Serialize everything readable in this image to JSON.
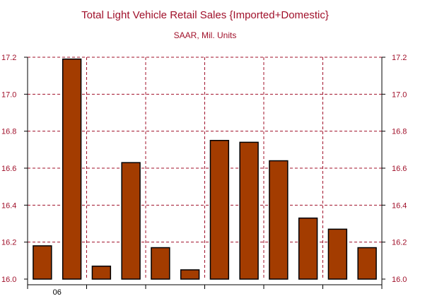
{
  "chart_data": {
    "type": "bar",
    "title": "Total Light Vehicle Retail Sales {Imported+Domestic}",
    "subtitle": "SAAR, Mil. Units",
    "ylim": [
      16.0,
      17.2
    ],
    "yticks": [
      16.0,
      16.2,
      16.4,
      16.6,
      16.8,
      17.0,
      17.2
    ],
    "ytick_labels": [
      "16.0",
      "16.2",
      "16.4",
      "16.6",
      "16.8",
      "17.0",
      "17.2"
    ],
    "x_tick_label": "06",
    "values": [
      16.18,
      17.19,
      16.07,
      16.63,
      16.17,
      16.05,
      16.75,
      16.74,
      16.64,
      16.33,
      16.27,
      16.17
    ],
    "grid": true,
    "axes": "left-and-right",
    "bar_color": "#a33c00",
    "grid_color": "#a0102a"
  }
}
